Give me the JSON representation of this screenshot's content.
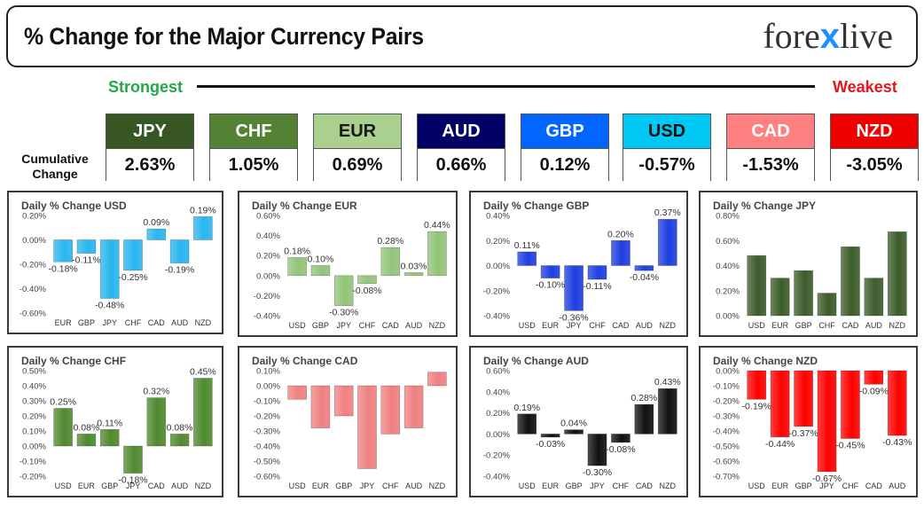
{
  "header": {
    "title": "% Change for the Major Currency Pairs",
    "logo_left": "fore",
    "logo_x": "x",
    "logo_right": "live"
  },
  "scale": {
    "strongest": "Strongest",
    "weakest": "Weakest"
  },
  "cumulative_label_line1": "Cumulative",
  "cumulative_label_line2": "Change",
  "currencies": [
    {
      "name": "JPY",
      "value": "2.63%",
      "bg": "#375623",
      "fg": "#ffffff"
    },
    {
      "name": "CHF",
      "value": "1.05%",
      "bg": "#548235",
      "fg": "#ffffff"
    },
    {
      "name": "EUR",
      "value": "0.69%",
      "bg": "#a9d08e",
      "fg": "#1a1a1a"
    },
    {
      "name": "AUD",
      "value": "0.66%",
      "bg": "#000066",
      "fg": "#ffffff"
    },
    {
      "name": "GBP",
      "value": "0.12%",
      "bg": "#0066ff",
      "fg": "#ffffff"
    },
    {
      "name": "USD",
      "value": "-0.57%",
      "bg": "#00c8f5",
      "fg": "#111111"
    },
    {
      "name": "CAD",
      "value": "-1.53%",
      "bg": "#ff8080",
      "fg": "#ffffff"
    },
    {
      "name": "NZD",
      "value": "-3.05%",
      "bg": "#ee0000",
      "fg": "#ffffff"
    }
  ],
  "chart_data": [
    {
      "type": "bar",
      "title": "Daily % Change USD",
      "color": "#29b6ef",
      "categories": [
        "EUR",
        "GBP",
        "JPY",
        "CHF",
        "CAD",
        "AUD",
        "NZD"
      ],
      "values": [
        -0.18,
        -0.11,
        -0.48,
        -0.25,
        0.09,
        -0.19,
        0.19
      ],
      "labels": [
        "-0.18%",
        "-0.11%",
        "-0.48%",
        "-0.25%",
        "0.09%",
        "-0.19%",
        "0.19%"
      ],
      "ylim": [
        -0.6,
        0.2
      ],
      "yticks": [
        0.2,
        0,
        -0.2,
        -0.4,
        -0.6
      ],
      "ytick_labels": [
        "0.20%",
        "0.00%",
        "-0.20%",
        "-0.40%",
        "-0.60%"
      ]
    },
    {
      "type": "bar",
      "title": "Daily % Change EUR",
      "color": "#92c47a",
      "categories": [
        "USD",
        "GBP",
        "JPY",
        "CHF",
        "CAD",
        "AUD",
        "NZD"
      ],
      "values": [
        0.18,
        0.1,
        -0.3,
        -0.08,
        0.28,
        0.03,
        0.44
      ],
      "labels": [
        "0.18%",
        "0.10%",
        "-0.30%",
        "-0.08%",
        "0.28%",
        "0.03%",
        "0.44%"
      ],
      "ylim": [
        -0.4,
        0.6
      ],
      "yticks": [
        0.6,
        0.4,
        0.2,
        0,
        -0.2,
        -0.4
      ],
      "ytick_labels": [
        "0.60%",
        "0.40%",
        "0.20%",
        "0.00%",
        "-0.20%",
        "-0.40%"
      ]
    },
    {
      "type": "bar",
      "title": "Daily % Change GBP",
      "color": "#1f3fe0",
      "categories": [
        "USD",
        "EUR",
        "JPY",
        "CHF",
        "CAD",
        "AUD",
        "NZD"
      ],
      "values": [
        0.11,
        -0.1,
        -0.36,
        -0.11,
        0.2,
        -0.04,
        0.37
      ],
      "labels": [
        "0.11%",
        "-0.10%",
        "-0.36%",
        "-0.11%",
        "0.20%",
        "-0.04%",
        "0.37%"
      ],
      "ylim": [
        -0.4,
        0.4
      ],
      "yticks": [
        0.4,
        0.2,
        0,
        -0.2,
        -0.4
      ],
      "ytick_labels": [
        "0.40%",
        "0.20%",
        "0.00%",
        "-0.20%",
        "-0.40%"
      ]
    },
    {
      "type": "bar",
      "title": "Daily % Change JPY",
      "color": "#3d5c2a",
      "categories": [
        "USD",
        "EUR",
        "GBP",
        "CHF",
        "CAD",
        "AUD",
        "NZD"
      ],
      "values": [
        0.48,
        0.3,
        0.36,
        0.18,
        0.55,
        0.3,
        0.67
      ],
      "labels": [],
      "ylim": [
        0,
        0.8
      ],
      "yticks": [
        0.8,
        0.6,
        0.4,
        0.2,
        0
      ],
      "ytick_labels": [
        "0.80%",
        "0.60%",
        "0.40%",
        "0.20%",
        "0.00%"
      ]
    },
    {
      "type": "bar",
      "title": "Daily % Change CHF",
      "color": "#4f8a2f",
      "categories": [
        "USD",
        "EUR",
        "GBP",
        "JPY",
        "CAD",
        "AUD",
        "NZD"
      ],
      "values": [
        0.25,
        0.08,
        0.11,
        -0.18,
        0.32,
        0.08,
        0.45
      ],
      "labels": [
        "0.25%",
        "0.08%",
        "0.11%",
        "-0.18%",
        "0.32%",
        "0.08%",
        "0.45%"
      ],
      "ylim": [
        -0.2,
        0.5
      ],
      "yticks": [
        0.5,
        0.4,
        0.3,
        0.2,
        0.1,
        0,
        -0.1,
        -0.2
      ],
      "ytick_labels": [
        "0.50%",
        "0.40%",
        "0.30%",
        "0.20%",
        "0.10%",
        "0.00%",
        "-0.10%",
        "-0.20%"
      ]
    },
    {
      "type": "bar",
      "title": "Daily % Change CAD",
      "color": "#f08080",
      "categories": [
        "USD",
        "EUR",
        "GBP",
        "JPY",
        "CHF",
        "AUD",
        "NZD"
      ],
      "values": [
        -0.09,
        -0.28,
        -0.2,
        -0.55,
        -0.32,
        -0.28,
        0.09
      ],
      "labels": [],
      "ylim": [
        -0.6,
        0.1
      ],
      "yticks": [
        0.1,
        0,
        -0.1,
        -0.2,
        -0.3,
        -0.4,
        -0.5,
        -0.6
      ],
      "ytick_labels": [
        "0.10%",
        "0.00%",
        "-0.10%",
        "-0.20%",
        "-0.30%",
        "-0.40%",
        "-0.50%",
        "-0.60%"
      ]
    },
    {
      "type": "bar",
      "title": "Daily % Change AUD",
      "color": "#111111",
      "categories": [
        "USD",
        "EUR",
        "GBP",
        "JPY",
        "CHF",
        "CAD",
        "NZD"
      ],
      "values": [
        0.19,
        -0.03,
        0.04,
        -0.3,
        -0.08,
        0.28,
        0.43
      ],
      "labels": [
        "0.19%",
        "-0.03%",
        "0.04%",
        "-0.30%",
        "-0.08%",
        "0.28%",
        "0.43%"
      ],
      "ylim": [
        -0.4,
        0.6
      ],
      "yticks": [
        0.6,
        0.4,
        0.2,
        0,
        -0.2,
        -0.4
      ],
      "ytick_labels": [
        "0.60%",
        "0.40%",
        "0.20%",
        "0.00%",
        "-0.20%",
        "-0.40%"
      ]
    },
    {
      "type": "bar",
      "title": "Daily % Change NZD",
      "color": "#ff0000",
      "categories": [
        "USD",
        "EUR",
        "GBP",
        "JPY",
        "CHF",
        "CAD",
        "AUD"
      ],
      "values": [
        -0.19,
        -0.44,
        -0.37,
        -0.67,
        -0.45,
        -0.09,
        -0.43
      ],
      "labels": [
        "-0.19%",
        "-0.44%",
        "-0.37%",
        "-0.67%",
        "-0.45%",
        "-0.09%",
        "-0.43%"
      ],
      "ylim": [
        -0.7,
        0
      ],
      "yticks": [
        0,
        -0.1,
        -0.2,
        -0.3,
        -0.4,
        -0.5,
        -0.6,
        -0.7
      ],
      "ytick_labels": [
        "0.00%",
        "-0.10%",
        "-0.20%",
        "-0.30%",
        "-0.40%",
        "-0.50%",
        "-0.60%",
        "-0.70%"
      ]
    }
  ]
}
